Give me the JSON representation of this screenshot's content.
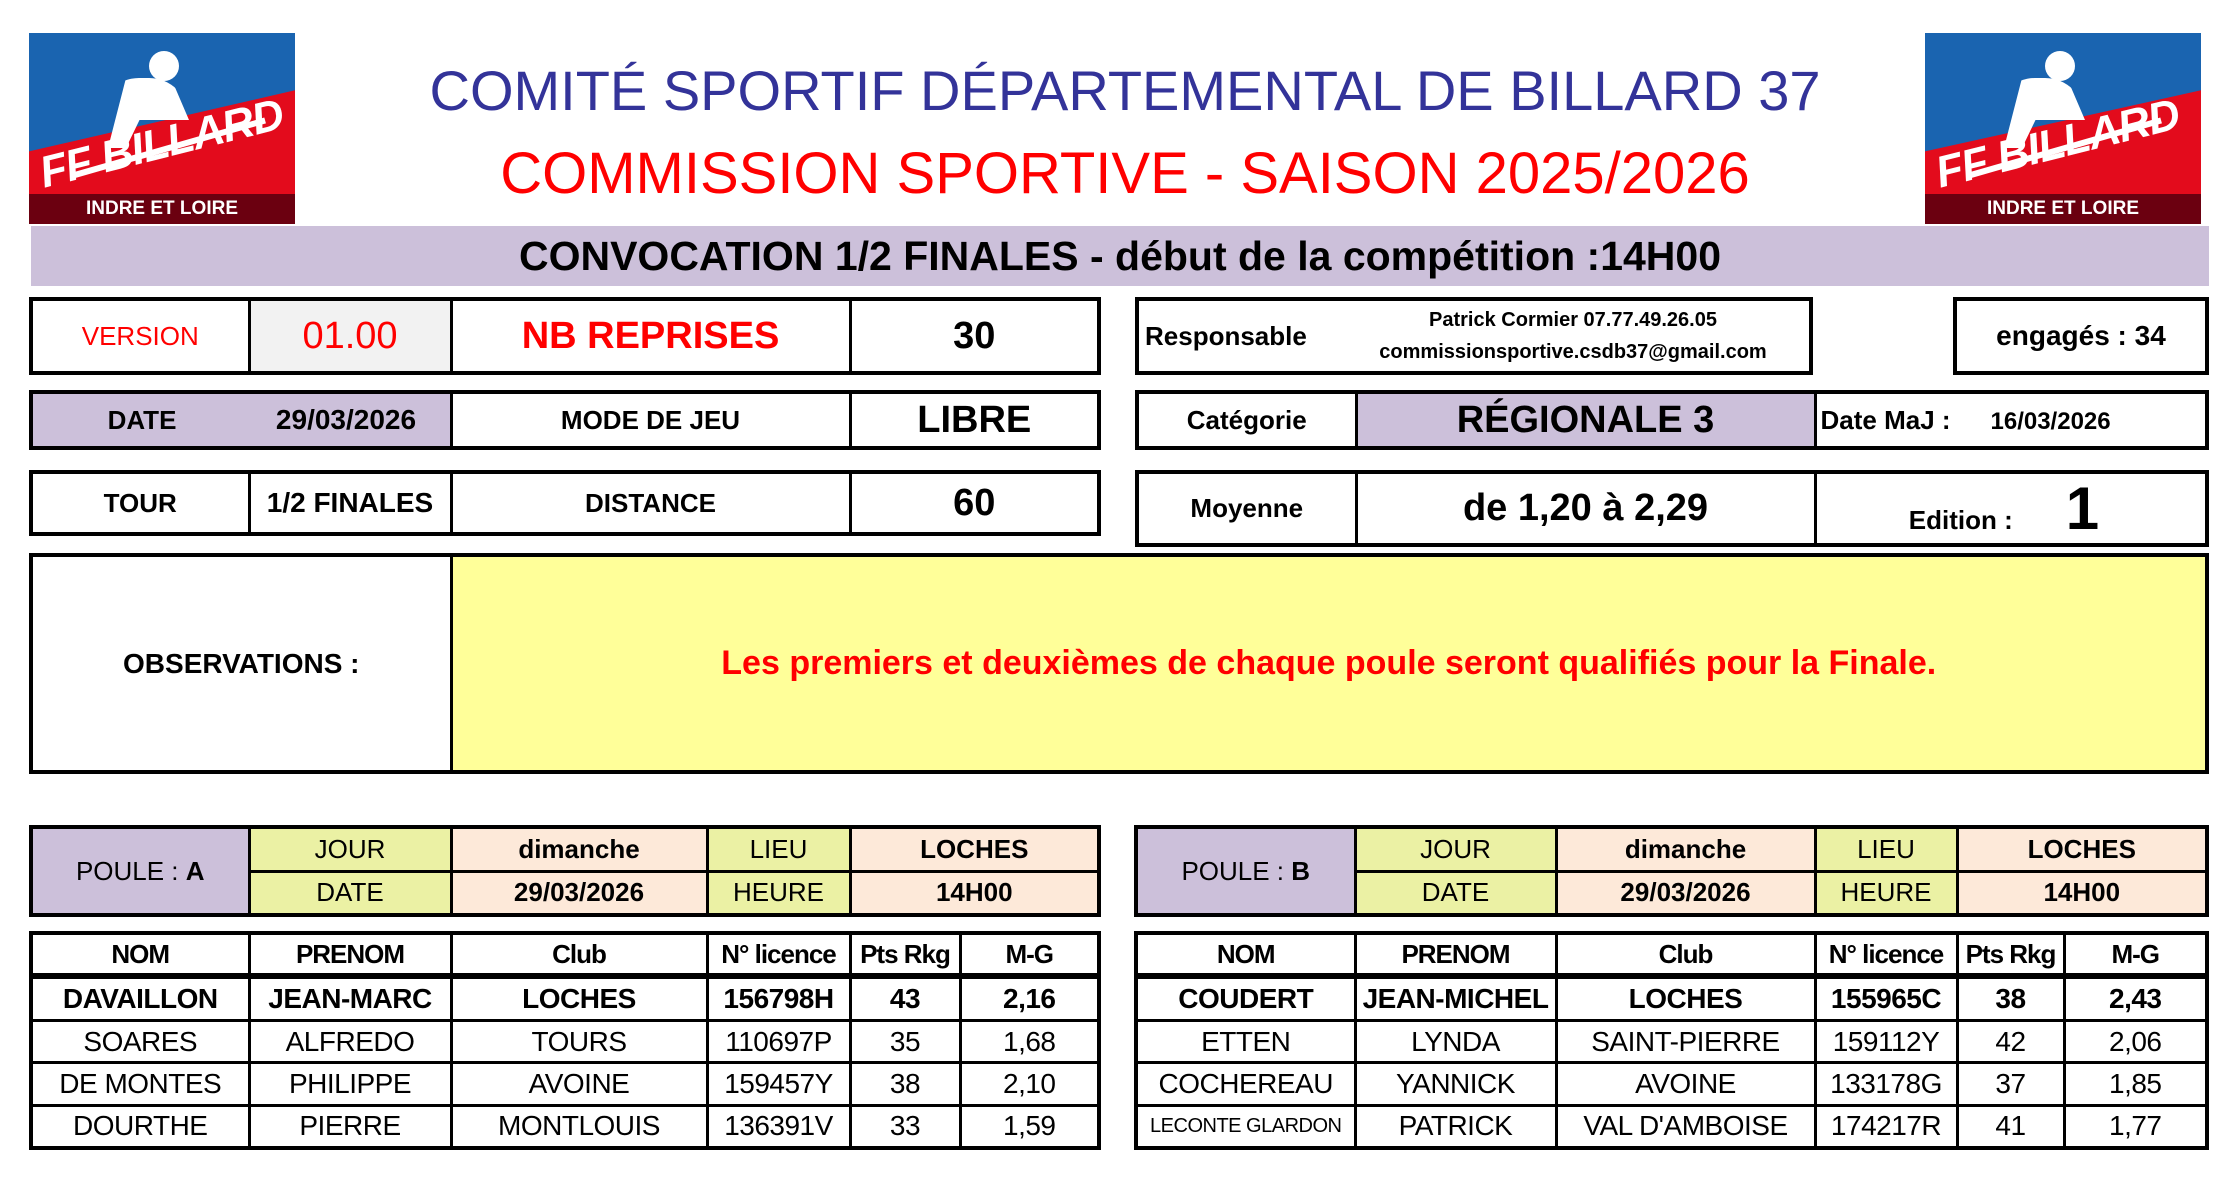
{
  "logo": {
    "brand": "FF BILLARD",
    "region": "INDRE ET LOIRE"
  },
  "header": {
    "title": "COMITÉ SPORTIF DÉPARTEMENTAL DE BILLARD 37",
    "subtitle": "COMMISSION SPORTIVE - SAISON 2025/2026",
    "banner": "CONVOCATION 1/2 FINALES - début de la compétition :14H00"
  },
  "info": {
    "version_label": "VERSION",
    "version": "01.00",
    "reprises_label": "NB REPRISES",
    "reprises": "30",
    "date_label": "DATE",
    "date": "29/03/2026",
    "mode_label": "MODE DE JEU",
    "mode": "LIBRE",
    "tour_label": "TOUR",
    "tour": "1/2 FINALES",
    "distance_label": "DISTANCE",
    "distance": "60",
    "responsable_label": "Responsable",
    "responsable_name": "Patrick Cormier 07.77.49.26.05",
    "responsable_email": "commissionsportive.csdb37@gmail.com",
    "engages": "engagés : 34",
    "categorie_label": "Catégorie",
    "categorie": "RÉGIONALE 3",
    "maj_label": "Date MaJ :",
    "maj": "16/03/2026",
    "moyenne_label": "Moyenne",
    "moyenne": "de 1,20 à 2,29",
    "edition_label": "Edition :",
    "edition": "1",
    "observations_label": "OBSERVATIONS :",
    "observations": "Les premiers et deuxièmes de chaque poule seront qualifiés pour la Finale."
  },
  "columns": [
    "NOM",
    "PRENOM",
    "Club",
    "N° licence",
    "Pts Rkg",
    "M-G"
  ],
  "poules": [
    {
      "label": "POULE : ",
      "letter": "A",
      "jour_label": "JOUR",
      "jour": "dimanche",
      "lieu_label": "LIEU",
      "lieu": "LOCHES",
      "date_label": "DATE",
      "date": "29/03/2026",
      "heure_label": "HEURE",
      "heure": "14H00",
      "players": [
        [
          "DAVAILLON",
          "JEAN-MARC",
          "LOCHES",
          "156798H",
          "43",
          "2,16"
        ],
        [
          "SOARES",
          "ALFREDO",
          "TOURS",
          "110697P",
          "35",
          "1,68"
        ],
        [
          "DE MONTES",
          "PHILIPPE",
          "AVOINE",
          "159457Y",
          "38",
          "2,10"
        ],
        [
          "DOURTHE",
          "PIERRE",
          "MONTLOUIS",
          "136391V",
          "33",
          "1,59"
        ]
      ]
    },
    {
      "label": "POULE : ",
      "letter": "B",
      "jour_label": "JOUR",
      "jour": "dimanche",
      "lieu_label": "LIEU",
      "lieu": "LOCHES",
      "date_label": "DATE",
      "date": "29/03/2026",
      "heure_label": "HEURE",
      "heure": "14H00",
      "players": [
        [
          "COUDERT",
          "JEAN-MICHEL",
          "LOCHES",
          "155965C",
          "38",
          "2,43"
        ],
        [
          "ETTEN",
          "LYNDA",
          "SAINT-PIERRE",
          "159112Y",
          "42",
          "2,06"
        ],
        [
          "COCHEREAU",
          "YANNICK",
          "AVOINE",
          "133178G",
          "37",
          "1,85"
        ],
        [
          "LECONTE GLARDON",
          "PATRICK",
          "VAL D'AMBOISE",
          "174217R",
          "41",
          "1,77"
        ]
      ]
    }
  ]
}
